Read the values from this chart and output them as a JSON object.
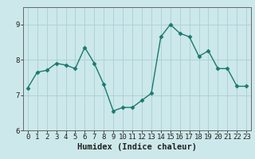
{
  "x": [
    0,
    1,
    2,
    3,
    4,
    5,
    6,
    7,
    8,
    9,
    10,
    11,
    12,
    13,
    14,
    15,
    16,
    17,
    18,
    19,
    20,
    21,
    22,
    23
  ],
  "y": [
    7.2,
    7.65,
    7.7,
    7.9,
    7.85,
    7.75,
    8.35,
    7.9,
    7.3,
    6.55,
    6.65,
    6.65,
    6.85,
    7.05,
    8.65,
    9.0,
    8.75,
    8.65,
    8.1,
    8.25,
    7.75,
    7.75,
    7.25,
    7.25
  ],
  "xlabel": "Humidex (Indice chaleur)",
  "ylim": [
    6.0,
    9.49
  ],
  "xlim": [
    -0.5,
    23.5
  ],
  "yticks": [
    6,
    7,
    8,
    9
  ],
  "xticks": [
    0,
    1,
    2,
    3,
    4,
    5,
    6,
    7,
    8,
    9,
    10,
    11,
    12,
    13,
    14,
    15,
    16,
    17,
    18,
    19,
    20,
    21,
    22,
    23
  ],
  "line_color": "#1a7a6e",
  "marker": "D",
  "marker_size": 2.5,
  "bg_color": "#cce8ea",
  "grid_color": "#aacfd4",
  "tick_label_fontsize": 6.5,
  "xlabel_fontsize": 7.5
}
